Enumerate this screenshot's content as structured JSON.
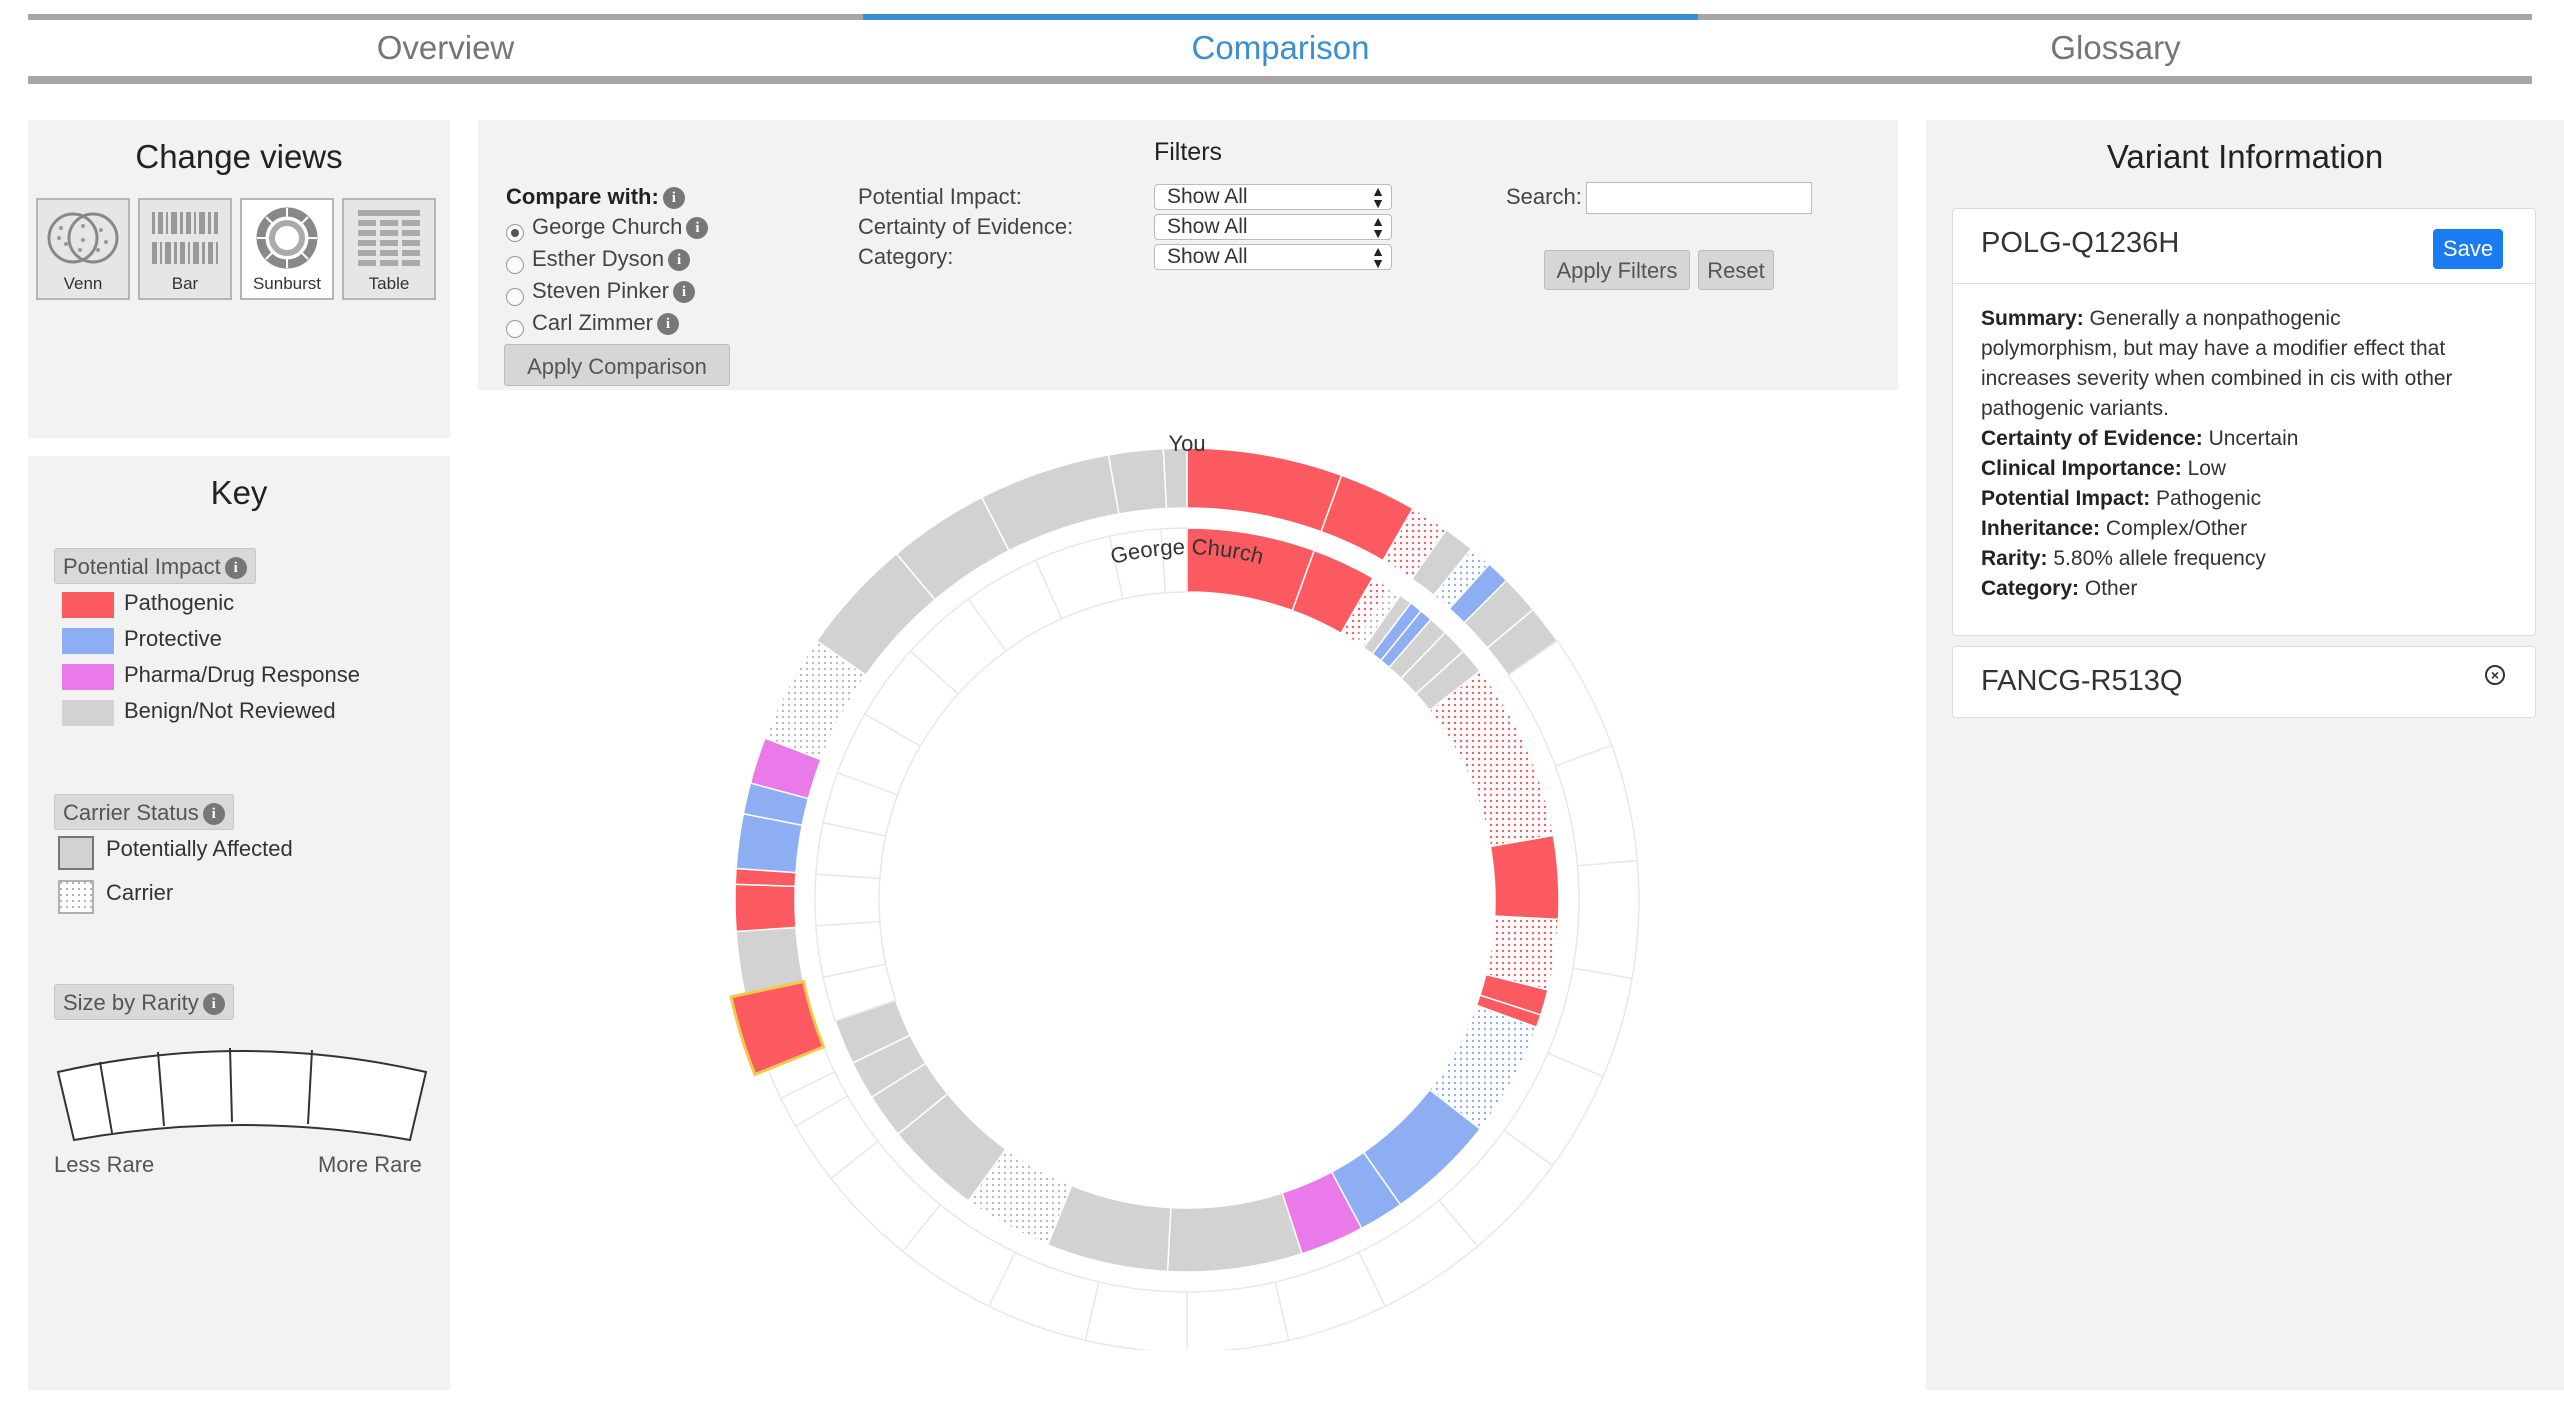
{
  "nav": {
    "tabs": [
      {
        "label": "Overview",
        "active": false
      },
      {
        "label": "Comparison",
        "active": true
      },
      {
        "label": "Glossary",
        "active": false
      }
    ]
  },
  "views": {
    "title": "Change views",
    "buttons": [
      {
        "label": "Venn",
        "icon": "venn-icon"
      },
      {
        "label": "Bar",
        "icon": "bar-icon"
      },
      {
        "label": "Sunburst",
        "icon": "sunburst-icon",
        "selected": true
      },
      {
        "label": "Table",
        "icon": "table-icon"
      }
    ]
  },
  "key": {
    "title": "Key",
    "impact_label": "Potential Impact",
    "impact_items": [
      {
        "label": "Pathogenic",
        "color": "#fb5a60"
      },
      {
        "label": "Protective",
        "color": "#8eaef4"
      },
      {
        "label": "Pharma/Drug Response",
        "color": "#ea79ea"
      },
      {
        "label": "Benign/Not Reviewed",
        "color": "#d2d2d2"
      }
    ],
    "carrier_label": "Carrier Status",
    "carrier_items": [
      {
        "label": "Potentially Affected"
      },
      {
        "label": "Carrier"
      }
    ],
    "rarity_label": "Size by Rarity",
    "less_rare": "Less Rare",
    "more_rare": "More Rare"
  },
  "filters": {
    "title": "Filters",
    "compare_with": "Compare with:",
    "people": [
      {
        "name": "George Church",
        "selected": true
      },
      {
        "name": "Esther Dyson",
        "selected": false
      },
      {
        "name": "Steven Pinker",
        "selected": false
      },
      {
        "name": "Carl Zimmer",
        "selected": false
      }
    ],
    "apply_comparison": "Apply Comparison",
    "potential_impact_label": "Potential Impact:",
    "certainty_label": "Certainty of Evidence:",
    "category_label": "Category:",
    "potential_impact_value": "Show All",
    "certainty_value": "Show All",
    "category_value": "Show All",
    "search_label": "Search:",
    "search_value": "",
    "apply_filters": "Apply Filters",
    "reset": "Reset"
  },
  "sunburst": {
    "outer_label": "You",
    "inner_label": "George Church"
  },
  "variant": {
    "title": "Variant Information",
    "selected": {
      "name": "POLG-Q1236H",
      "save_label": "Save",
      "fields": [
        {
          "key": "Summary:",
          "value": "Generally a nonpathogenic"
        },
        {
          "key": "",
          "value": "polymorphism, but may have a modifier effect that"
        },
        {
          "key": "",
          "value": "increases severity when combined in cis with other"
        },
        {
          "key": "",
          "value": "pathogenic variants."
        },
        {
          "key": "Certainty of Evidence:",
          "value": "Uncertain"
        },
        {
          "key": "Clinical Importance:",
          "value": "Low"
        },
        {
          "key": "Potential Impact:",
          "value": "Pathogenic"
        },
        {
          "key": "Inheritance:",
          "value": "Complex/Other"
        },
        {
          "key": "Rarity:",
          "value": "5.80% allele frequency"
        },
        {
          "key": "Category:",
          "value": "Other"
        }
      ]
    },
    "other": {
      "name": "FANCG-R513Q"
    }
  },
  "colors": {
    "pathogenic": "#fb5a60",
    "protective": "#8eaef4",
    "pharma": "#ea79ea",
    "benign": "#d2d2d2",
    "accent": "#3a8fd4",
    "save": "#1a7cf0",
    "highlight": "#f2c94c"
  }
}
